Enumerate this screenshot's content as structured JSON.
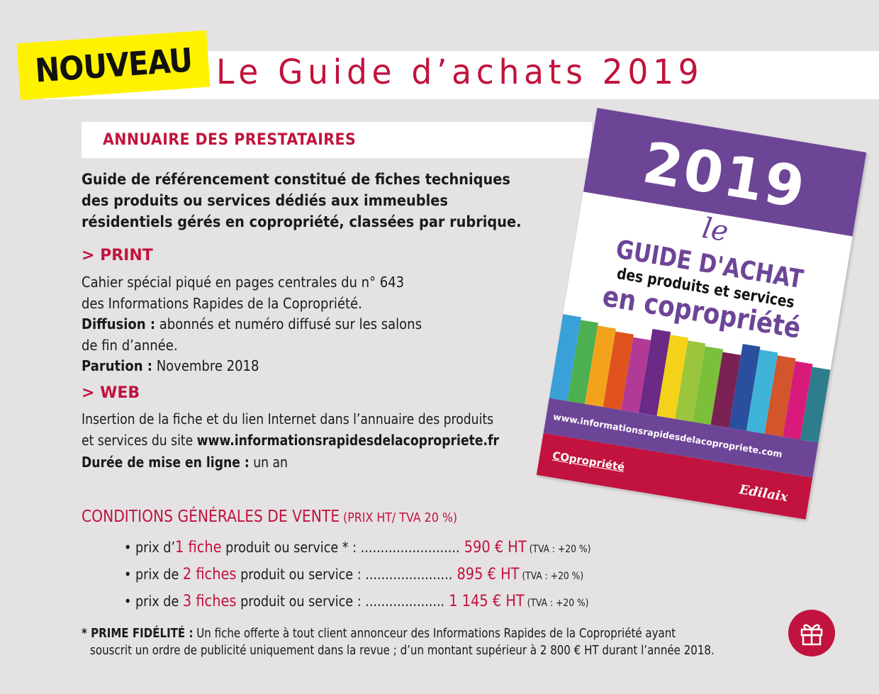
{
  "badge": "NOUVEAU",
  "title": "Le Guide d’achats 2019",
  "section_title": "ANNUAIRE DES PRESTATAIRES",
  "intro": "Guide de référencement constitué de fiches techniques des produits ou services dédiés aux immeubles résidentiels gérés en copropriété, classées par rubrique.",
  "print": {
    "heading": "> PRINT",
    "line1": "Cahier spécial piqué en pages centrales du n° 643",
    "line2": "des Informations Rapides de la Copropriété.",
    "diffusion_label": "Diffusion :",
    "diffusion_text": " abonnés et numéro diffusé sur les salons",
    "diffusion_text2": "de fin d’année.",
    "parution_label": "Parution :",
    "parution_text": " Novembre 2018"
  },
  "web": {
    "heading": "> WEB",
    "line1": "Insertion de la fiche et du lien Internet dans l’annuaire des produits",
    "line2_prefix": "et services du site ",
    "site": "www.informationsrapidesdelacopropriete.fr",
    "duree_label": "Durée de mise en ligne :",
    "duree_text": " un an"
  },
  "book": {
    "year": "2019",
    "le": "le",
    "line1": "GUIDE D'ACHAT",
    "line2": "des produits et services",
    "line3": "en copropriété",
    "url": "www.informationsrapidesdelacopropriete.com",
    "logo_left": "COpropriété",
    "logo_right": "Edilaix",
    "stripe_colors": [
      "#3aa0d8",
      "#4caf50",
      "#f2a31b",
      "#e0531f",
      "#b13a97",
      "#6a2a86",
      "#f5d21a",
      "#9bc53d",
      "#7cbf3b",
      "#7a2053",
      "#2a4f9e",
      "#3fb3d8",
      "#d2552b",
      "#d81b7a",
      "#2e7d8c"
    ]
  },
  "cgv": {
    "heading": "CONDITIONS GÉNÉRALES DE VENTE",
    "heading_note": " (PRIX HT/ TVA 20 %)",
    "items": [
      {
        "pre": "• prix d’",
        "hl": "1 fiche",
        "post": " produit ou service * : .........................",
        "price": " 590 € HT",
        "tva": " (TVA : +20 %)"
      },
      {
        "pre": "• prix de ",
        "hl": "2 fiches",
        "post": " produit ou service :  ......................",
        "price": " 895 € HT",
        "tva": " (TVA : +20 %)"
      },
      {
        "pre": "• prix de ",
        "hl": "3 fiches",
        "post": " produit ou service :  ....................",
        "price": "  1 145 € HT",
        "tva": " (TVA : +20 %)"
      }
    ]
  },
  "prime": {
    "label": "* PRIME FIDÉLITÉ :",
    "line1": " Un fiche offerte à tout client annonceur des Informations Rapides de la Copropriété ayant",
    "line2": "souscrit un ordre de publicité uniquement dans la revue ; d’un montant supérieur à 2 800 € HT durant l’année 2018."
  },
  "colors": {
    "accent": "#c1133d",
    "badge": "#fff200",
    "book_purple": "#6d4597",
    "background": "#e4e2e3"
  },
  "icons": {
    "gift": "gift-icon"
  }
}
